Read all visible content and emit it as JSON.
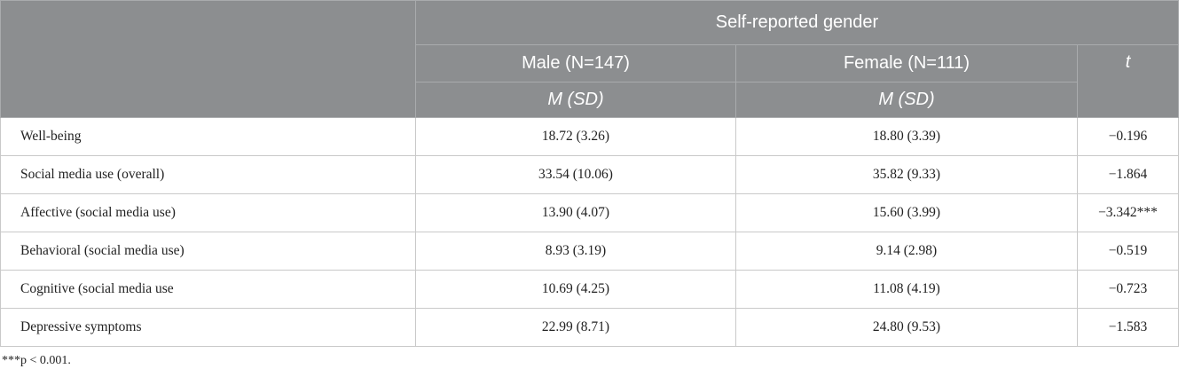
{
  "header": {
    "group": "Self-reported gender",
    "male": "Male (N=147)",
    "female": "Female (N=111)",
    "t": "t",
    "male_sub": "M (SD)",
    "female_sub": "M (SD)"
  },
  "table": {
    "rows": [
      [
        "Well-being",
        "18.72 (3.26)",
        "18.80 (3.39)",
        "−0.196"
      ],
      [
        "Social media use (overall)",
        "33.54 (10.06)",
        "35.82 (9.33)",
        "−1.864"
      ],
      [
        "Affective (social media use)",
        "13.90 (4.07)",
        "15.60 (3.99)",
        "−3.342***"
      ],
      [
        "Behavioral (social media use)",
        "8.93 (3.19)",
        "9.14 (2.98)",
        "−0.519"
      ],
      [
        "Cognitive (social media use",
        "10.69 (4.25)",
        "11.08 (4.19)",
        "−0.723"
      ],
      [
        "Depressive symptoms",
        "22.99 (8.71)",
        "24.80 (9.53)",
        "−1.583"
      ]
    ]
  },
  "footnote": "***p < 0.001."
}
